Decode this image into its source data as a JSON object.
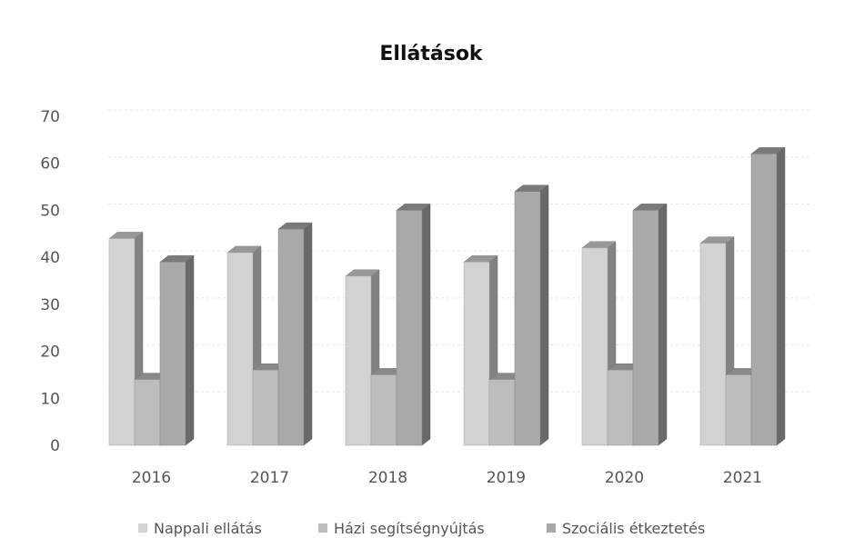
{
  "chart_data": {
    "type": "bar",
    "title": "Ellátások",
    "categories": [
      "2016",
      "2017",
      "2018",
      "2019",
      "2020",
      "2021"
    ],
    "series": [
      {
        "name": "Nappali ellátás",
        "values": [
          44,
          41,
          36,
          39,
          42,
          43
        ],
        "color": "#d2d2d2"
      },
      {
        "name": "Házi segítségnyújtás",
        "values": [
          14,
          16,
          15,
          14,
          16,
          15
        ],
        "color": "#bdbdbd"
      },
      {
        "name": "Szociális étkeztetés",
        "values": [
          39,
          46,
          50,
          54,
          50,
          62
        ],
        "color": "#a9a9a9"
      }
    ],
    "ylim": [
      0,
      70
    ],
    "yticks": [
      "0",
      "10",
      "20",
      "30",
      "40",
      "50",
      "60",
      "70"
    ],
    "grid": true,
    "legend_position": "bottom",
    "style": "3d-clustered-column"
  }
}
